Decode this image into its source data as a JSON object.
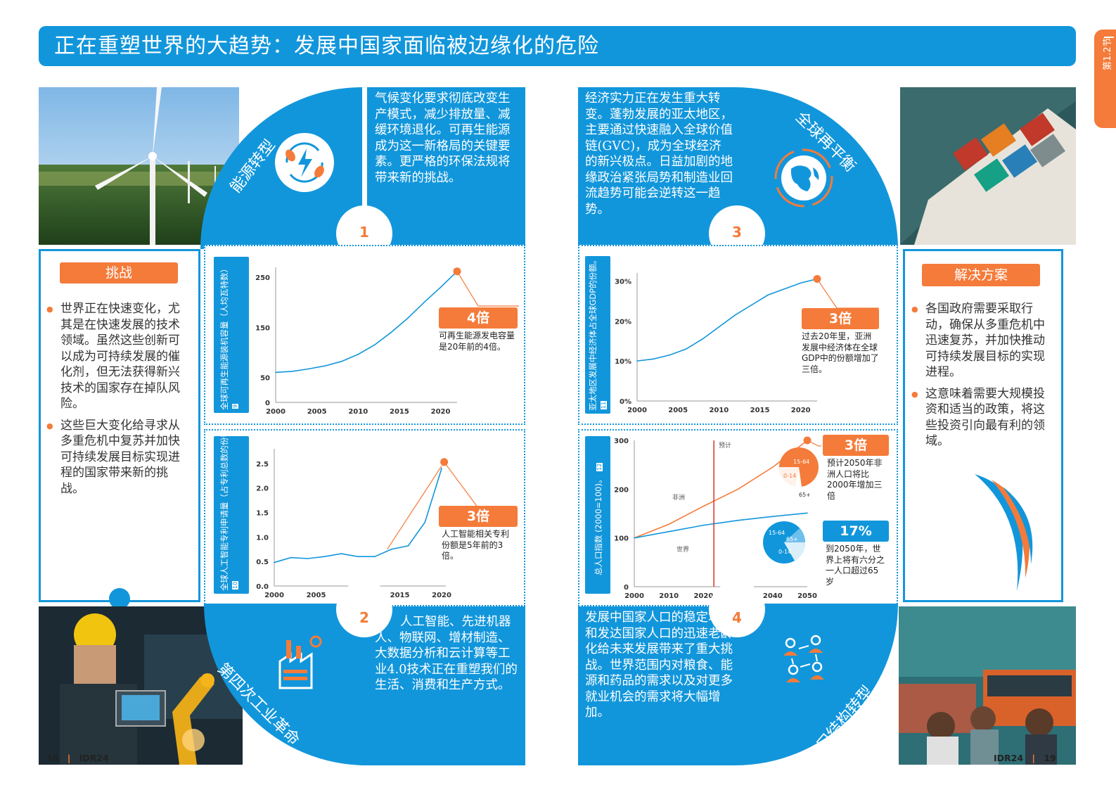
{
  "banner": {
    "title": "正在重塑世界的大趋势：发展中国家面临被边缘化的危险"
  },
  "side_tab": {
    "label": "第1.2节"
  },
  "themes": {
    "t1": {
      "label": "能源转型",
      "number": "1",
      "text": "气候变化要求彻底改变生产模式，减少排放量、减缓环境退化。可再生能源成为这一新格局的关键要素。更严格的环保法规将带来新的挑战。"
    },
    "t2": {
      "label": "第四次工业革命",
      "number": "2",
      "text": "人工智能、先进机器人、物联网、增材制造、大数据分析和云计算等工业4.0技术正在重塑我们的生活、消费和生产方式。"
    },
    "t3": {
      "label": "全球再平衡",
      "number": "3",
      "text": "经济实力正在发生重大转变。蓬勃发展的亚太地区，主要通过快速融入全球价值链(GVC)，成为全球经济的新兴极点。日益加剧的地缘政治紧张局势和制造业回流趋势可能会逆转这一趋势。"
    },
    "t4": {
      "label": "人口结构转型",
      "number": "4",
      "text": "发展中国家人口的稳定增长和发达国家人口的迅速老龄化给未来发展带来了重大挑战。世界范围内对粮食、能源和药品的需求以及对更多就业机会的需求将大幅增加。"
    }
  },
  "challenge": {
    "title": "挑战",
    "bullets": [
      "世界正在快速变化，尤其是在快速发展的技术领域。虽然这些创新可以成为可持续发展的催化剂，但无法获得新兴技术的国家存在掉队风险。",
      "这些巨大变化给寻求从多重危机中复苏并加快可持续发展目标实现进程的国家带来新的挑战。"
    ]
  },
  "solution": {
    "title": "解决方案",
    "bullets": [
      "各国政府需要采取行动，确保从多重危机中迅速复苏，并加快推动可持续发展目标的实现进程。",
      "这意味着需要大规模投资和适当的政策，将这些投资引向最有利的领域。"
    ]
  },
  "chart1": {
    "ylabel": "全球可再生能源装机容量（人均瓦特数）",
    "ref": "9",
    "callout_value": "4倍",
    "callout_text": "可再生能源发电容量是20年前的4倍。",
    "yticks": [
      "250",
      "150",
      "50",
      "0"
    ],
    "xticks": [
      "2000",
      "2005",
      "2010",
      "2015",
      "2020"
    ]
  },
  "chart2": {
    "ylabel": "全球人工智能专利申请量（占专利总数的份额）",
    "ref": "10",
    "callout_value": "3倍",
    "callout_text": "人工智能相关专利份额是5年前的3倍。",
    "yticks": [
      "2.5",
      "2.0",
      "1.5",
      "1.0",
      "0.5",
      "0.0"
    ],
    "xticks": [
      "2000",
      "2005",
      "2010",
      "2015",
      "2020"
    ]
  },
  "chart3": {
    "ylabel": "亚太地区发展中经济体占全球GDP的份额。",
    "ref": "11",
    "callout_value": "3倍",
    "callout_text": "过去20年里，亚洲发展中经济体在全球GDP中的份额增加了三倍。",
    "yticks": [
      "30%",
      "20%",
      "10%",
      "0%"
    ],
    "xticks": [
      "2000",
      "2005",
      "2010",
      "2015",
      "2020"
    ]
  },
  "chart4": {
    "ylabel": "总人口指数 (2000=100)。",
    "ref": "12",
    "forecast_label": "预计",
    "series_africa": "非洲",
    "series_world": "世界",
    "callout1_value": "3倍",
    "callout1_text": "预计2050年非洲人口将比2000年增加三倍",
    "callout2_value": "17%",
    "callout2_text": "到2050年，世界上将有六分之一人口超过65岁",
    "pie_labels": [
      "15-64",
      "0-14",
      "65+"
    ],
    "yticks": [
      "300",
      "200",
      "100",
      "0"
    ],
    "xticks": [
      "2000",
      "2010",
      "2020",
      "2030",
      "2040",
      "2050"
    ]
  },
  "chart_data": [
    {
      "type": "line",
      "ylabel": "全球可再生能源装机容量（人均瓦特数）",
      "x": [
        2000,
        2002,
        2004,
        2006,
        2008,
        2010,
        2012,
        2014,
        2016,
        2018,
        2020,
        2022
      ],
      "series": [
        {
          "values": [
            60,
            62,
            67,
            73,
            82,
            96,
            115,
            140,
            168,
            200,
            230,
            262
          ]
        }
      ],
      "ylim": [
        0,
        270
      ]
    },
    {
      "type": "line",
      "ylabel": "全球人工智能专利申请量（占专利总数的份额）",
      "x": [
        2000,
        2002,
        2004,
        2006,
        2008,
        2010,
        2012,
        2014,
        2016,
        2018,
        2020
      ],
      "series": [
        {
          "values": [
            0.48,
            0.58,
            0.56,
            0.6,
            0.66,
            0.6,
            0.6,
            0.75,
            0.82,
            1.3,
            2.4
          ]
        }
      ],
      "ylim": [
        0,
        2.8
      ]
    },
    {
      "type": "line",
      "ylabel": "亚太地区发展中经济体占全球GDP的份额。",
      "x": [
        2000,
        2002,
        2004,
        2006,
        2008,
        2010,
        2012,
        2014,
        2016,
        2018,
        2020,
        2022
      ],
      "series": [
        {
          "values": [
            10,
            10.5,
            11.5,
            13,
            15.5,
            18.5,
            21.5,
            24,
            26.5,
            28,
            29.5,
            30.5
          ]
        }
      ],
      "ylim": [
        0,
        32
      ]
    },
    {
      "type": "line",
      "ylabel": "总人口指数 (2000=100)。",
      "x": [
        2000,
        2010,
        2020,
        2030,
        2040,
        2050
      ],
      "series": [
        {
          "name": "非洲",
          "values": [
            100,
            128,
            165,
            200,
            245,
            300
          ]
        },
        {
          "name": "世界",
          "values": [
            100,
            113,
            126,
            136,
            144,
            151
          ]
        }
      ],
      "ylim": [
        0,
        300
      ]
    }
  ],
  "footer": {
    "left_page": "18",
    "left_pub": "IDR24",
    "right_page": "19",
    "right_pub": "IDR24"
  },
  "colors": {
    "blue": "#1296db",
    "orange": "#f47b3a"
  }
}
